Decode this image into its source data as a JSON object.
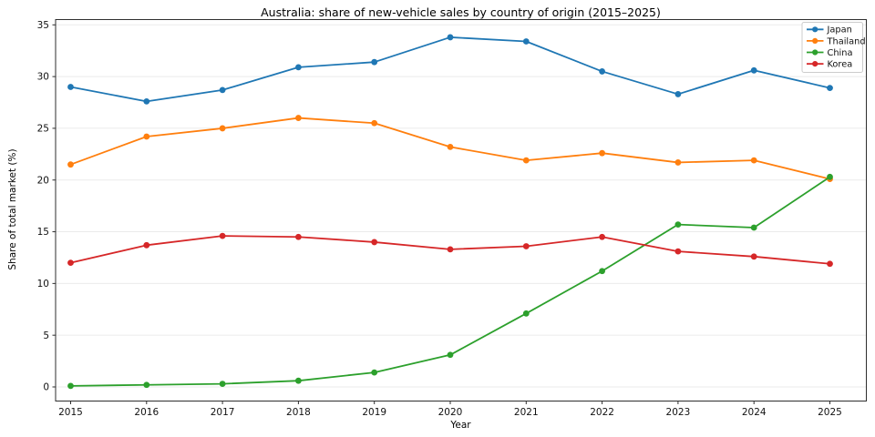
{
  "chart_data": {
    "type": "line",
    "title": "Australia: share of new-vehicle sales by country of origin (2015–2025)",
    "xlabel": "Year",
    "ylabel": "Share of total market (%)",
    "x": [
      2015,
      2016,
      2017,
      2018,
      2019,
      2020,
      2021,
      2022,
      2023,
      2024,
      2025
    ],
    "yticks": [
      0,
      5,
      10,
      15,
      20,
      25,
      30,
      35
    ],
    "ylim": [
      0,
      35
    ],
    "grid": "horizontal-only",
    "legend_position": "top-right",
    "series": [
      {
        "name": "Japan",
        "color": "#1f77b4",
        "values": [
          29.0,
          27.6,
          28.7,
          30.9,
          31.4,
          33.8,
          33.4,
          30.5,
          28.3,
          30.6,
          28.9
        ]
      },
      {
        "name": "Thailand",
        "color": "#ff7f0e",
        "values": [
          21.5,
          24.2,
          25.0,
          26.0,
          25.5,
          23.2,
          21.9,
          22.6,
          21.7,
          21.9,
          20.1
        ]
      },
      {
        "name": "China",
        "color": "#2ca02c",
        "values": [
          0.1,
          0.2,
          0.3,
          0.6,
          1.4,
          3.1,
          7.1,
          11.2,
          15.7,
          15.4,
          20.3
        ]
      },
      {
        "name": "Korea",
        "color": "#d62728",
        "values": [
          12.0,
          13.7,
          14.6,
          14.5,
          14.0,
          13.3,
          13.6,
          14.5,
          13.1,
          12.6,
          11.9
        ]
      }
    ],
    "colors": {
      "grid": "#ebebeb",
      "spine": "#2e2e2e",
      "background": "#ffffff",
      "legend_border": "#cccccc"
    }
  }
}
